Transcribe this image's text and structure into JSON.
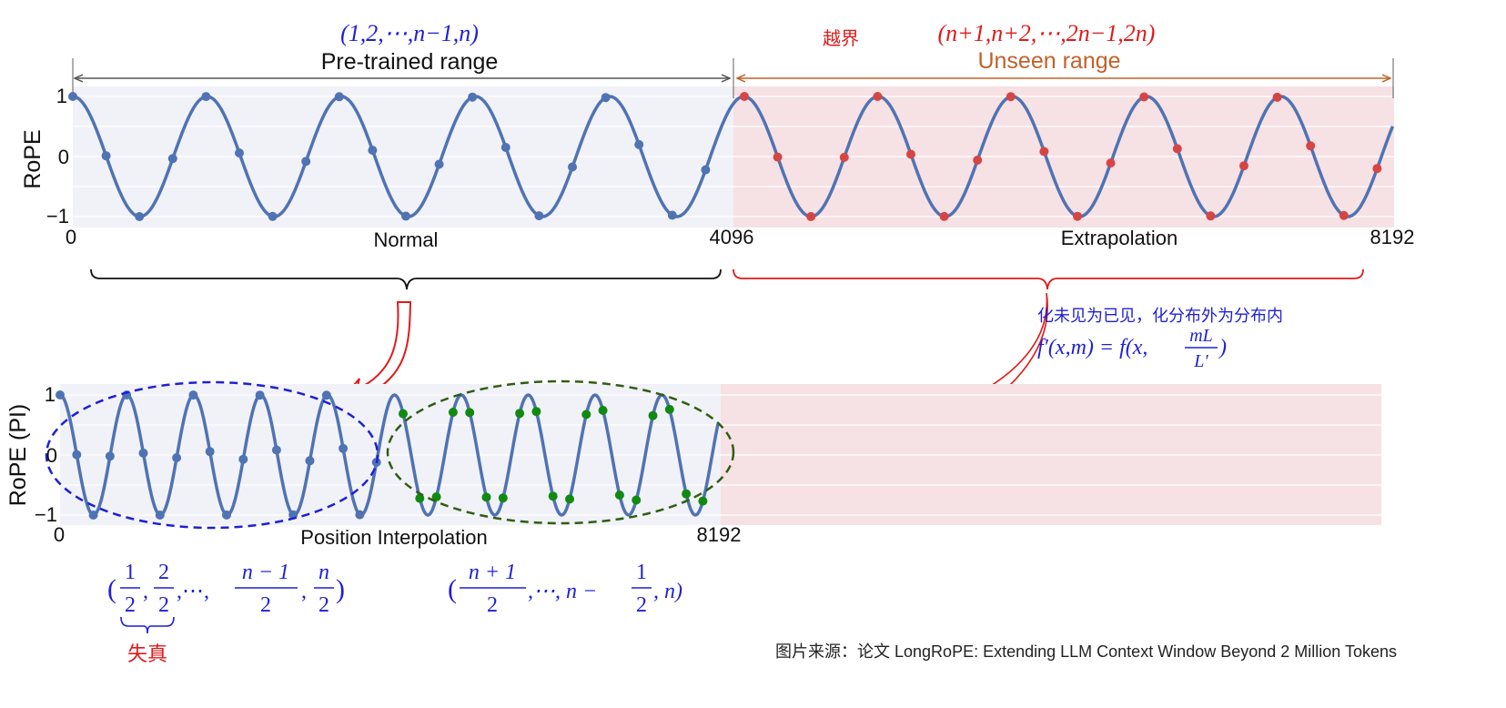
{
  "top": {
    "pretrained_seq": "(1,2,⋯,n−1,n)",
    "pretrained_label": "Pre-trained range",
    "overflow_label": "越界",
    "unseen_seq": "(n+1,n+2,⋯,2n−1,2n)",
    "unseen_label": "Unseen range",
    "ylabel": "RoPE",
    "yticks": [
      "1",
      "0",
      "−1"
    ],
    "xticks": [
      "0",
      "4096",
      "8192"
    ],
    "normal_label": "Normal",
    "extrapolation_label": "Extrapolation"
  },
  "bottom": {
    "ylabel": "RoPE (PI)",
    "yticks": [
      "1",
      "0",
      "−1"
    ],
    "xticks": [
      "0",
      "8192"
    ],
    "interp_label": "Position Interpolation"
  },
  "annotation": {
    "note": "化未见为已见，化分布外为分布内",
    "formula_lhs": "f′(x,m) = f(x,",
    "formula_num": "mL",
    "formula_den": "L′",
    "formula_close": ")"
  },
  "fractions": {
    "left_seq": {
      "open": "(",
      "f1_num": "1",
      "f1_den": "2",
      "f2_num": "2",
      "f2_den": "2",
      "dots": ",⋯,",
      "f3_num": "n − 1",
      "f3_den": "2",
      "f4_num": "n",
      "f4_den": "2",
      "close": ")"
    },
    "right_seq": {
      "open": "(",
      "f1_num": "n + 1",
      "f1_den": "2",
      "mid": ",⋯, n −",
      "f2_num": "1",
      "f2_den": "2",
      "tail": ", n)"
    },
    "distortion_label": "失真"
  },
  "source": "图片来源：论文 LongRoPE: Extending LLM Context Window Beyond 2 Million Tokens",
  "colors": {
    "curve": "#4f73b3",
    "red_dot": "#d64545",
    "green_dot": "#118a11",
    "blue_text": "#1f1fd6",
    "red_text": "#e01a1a",
    "orange": "#c0622a",
    "pre_bg": "#f1f1f8",
    "unseen_bg": "#f6e1e5",
    "dark_green": "#2f5e12"
  }
}
